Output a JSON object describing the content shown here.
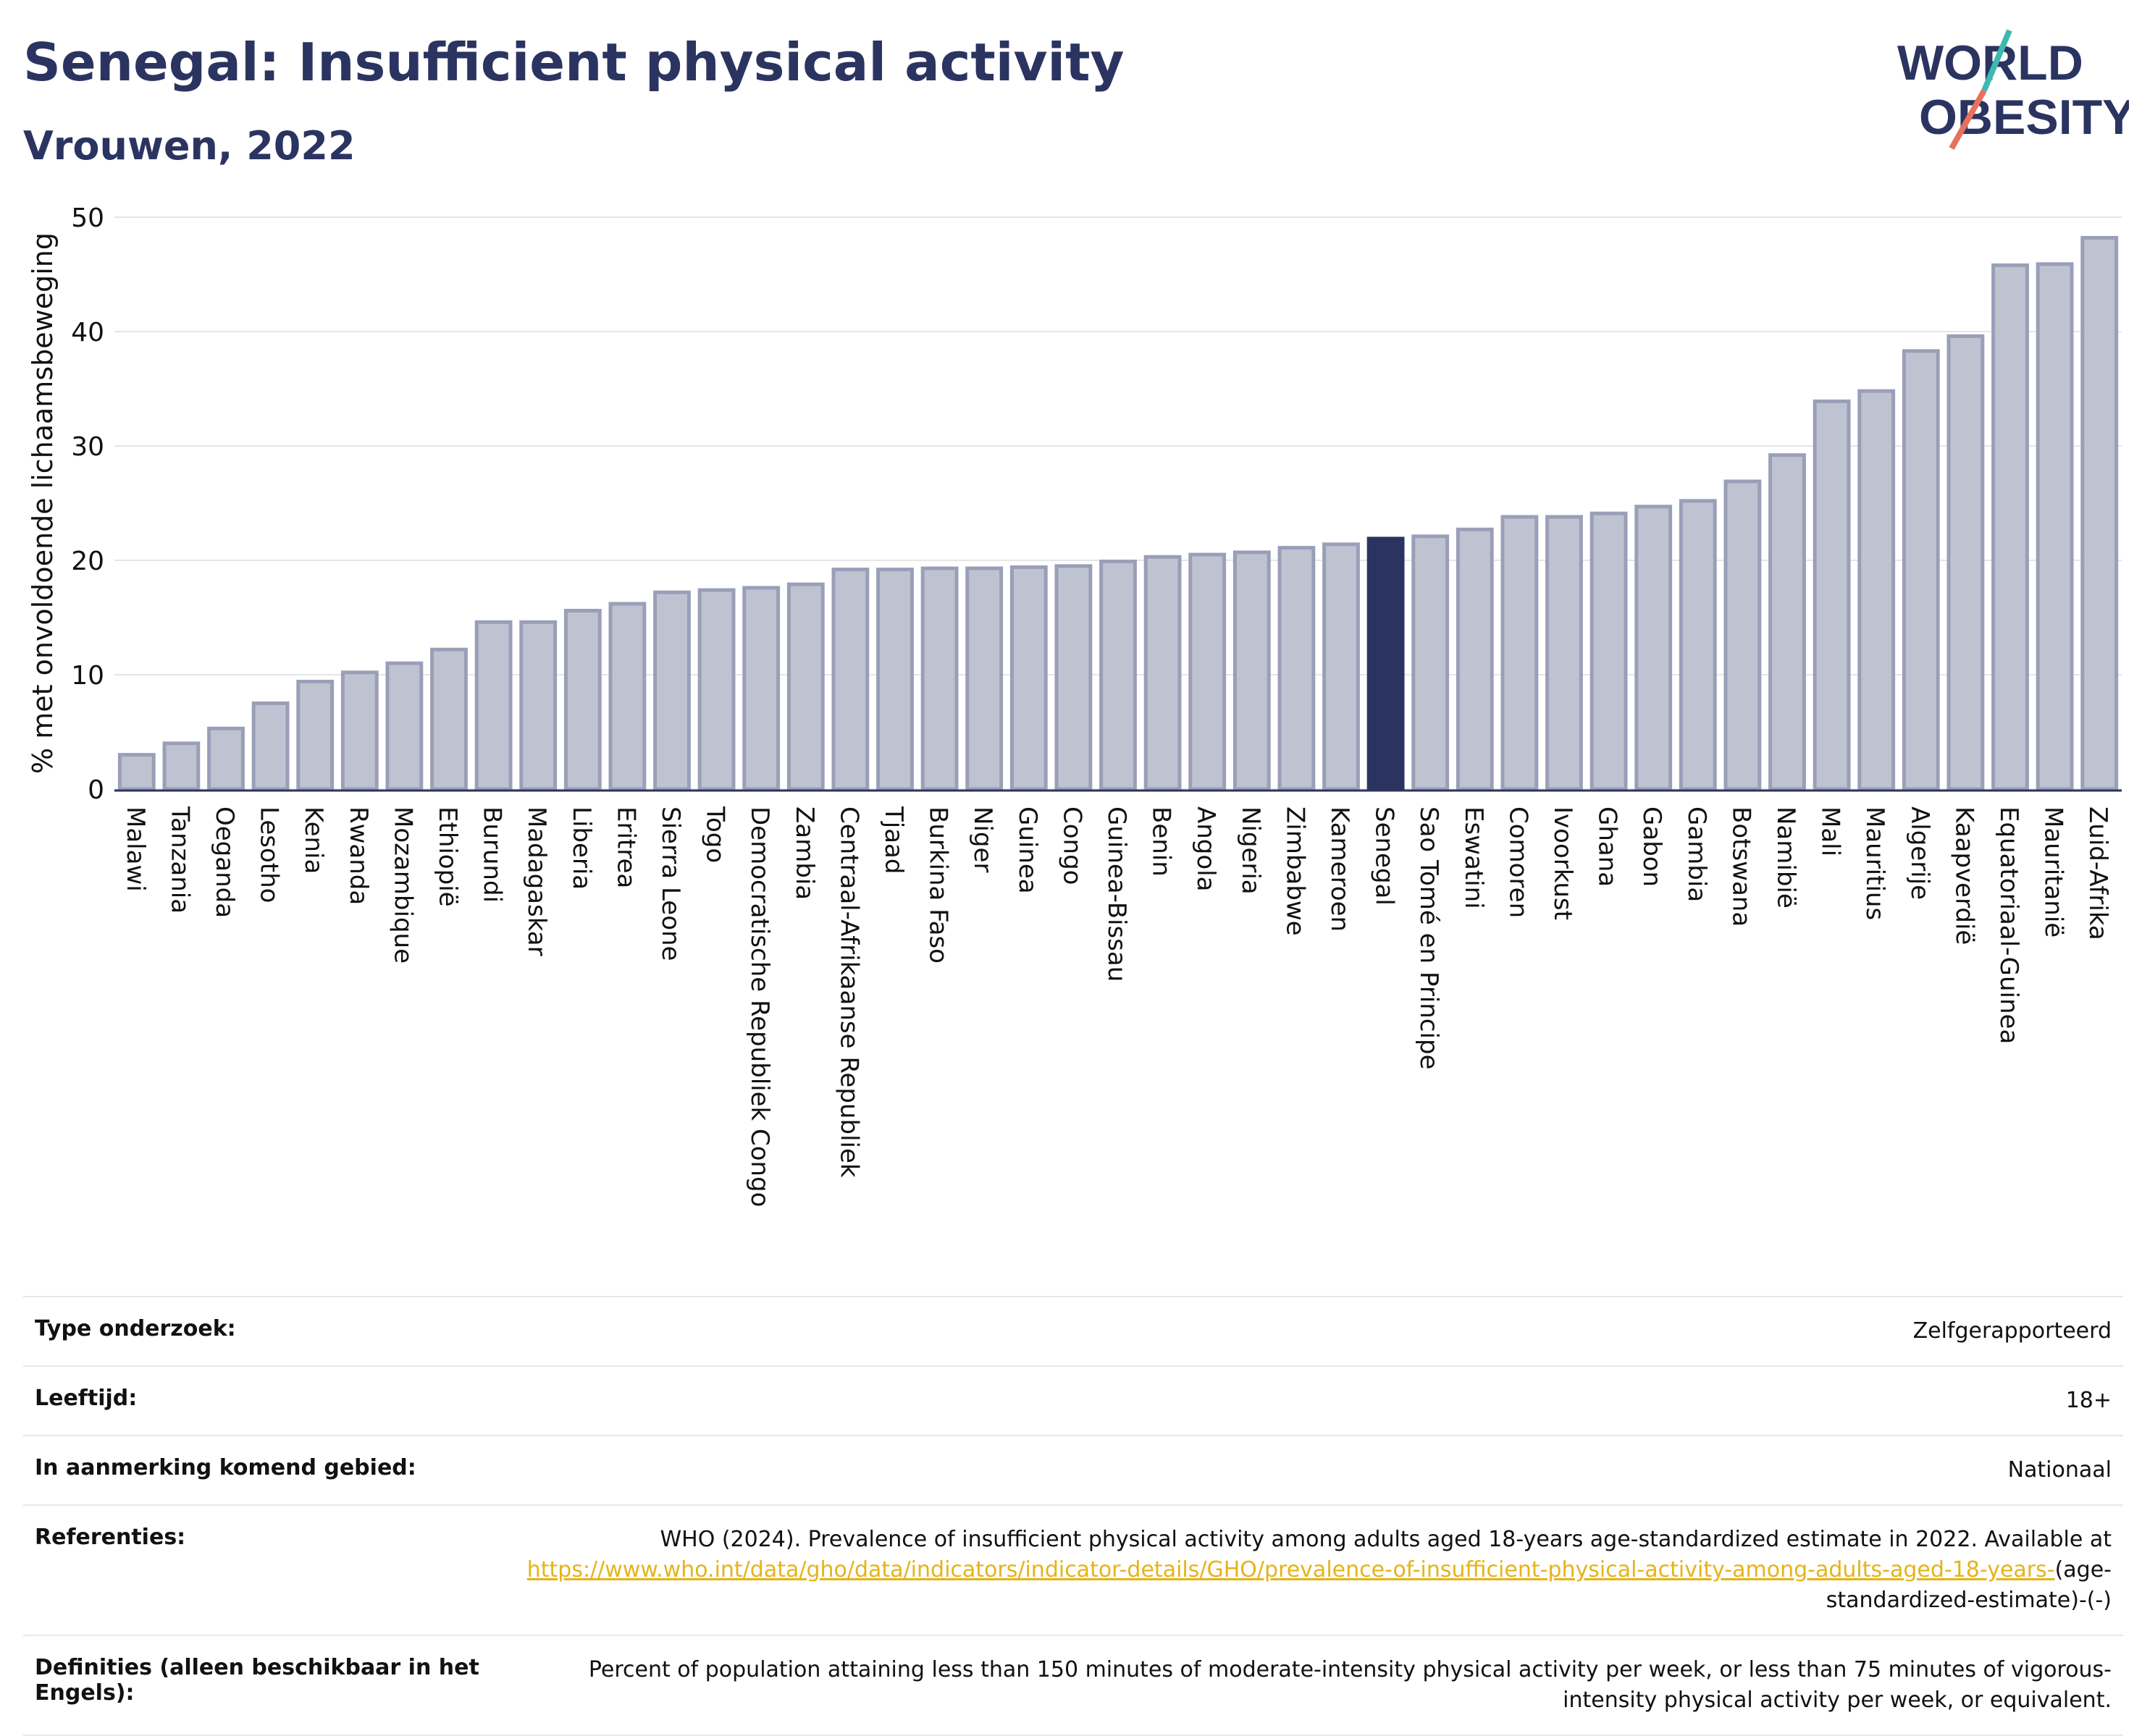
{
  "header": {
    "title": "Senegal: Insufficient physical activity",
    "subtitle": "Vrouwen, 2022",
    "logo_line1": "WORLD",
    "logo_line2": "OBESITY"
  },
  "colors": {
    "bar": "#bfc3d1",
    "bar_stroke": "#9a9fb8",
    "highlight": "#2b3460",
    "text": "#2b3460",
    "grid": "#e6e6e6",
    "link": "#e6b318"
  },
  "chart_data": {
    "type": "bar",
    "ylabel": "% met onvoldoende lichaamsbeweging",
    "ylim": [
      0,
      50
    ],
    "yticks": [
      0,
      10,
      20,
      30,
      40,
      50
    ],
    "grid": true,
    "highlight": "Senegal",
    "categories": [
      "Malawi",
      "Tanzania",
      "Oeganda",
      "Lesotho",
      "Kenia",
      "Rwanda",
      "Mozambique",
      "Ethiopië",
      "Burundi",
      "Madagaskar",
      "Liberia",
      "Eritrea",
      "Sierra Leone",
      "Togo",
      "Democratische Republiek Congo",
      "Zambia",
      "Centraal-Afrikaanse Republiek",
      "Tjaad",
      "Burkina Faso",
      "Niger",
      "Guinea",
      "Congo",
      "Guinea-Bissau",
      "Benin",
      "Angola",
      "Nigeria",
      "Zimbabwe",
      "Kameroen",
      "Senegal",
      "Sao Tomé en Principe",
      "Eswatini",
      "Comoren",
      "Ivoorkust",
      "Ghana",
      "Gabon",
      "Gambia",
      "Botswana",
      "Namibië",
      "Mali",
      "Mauritius",
      "Algerije",
      "Kaapverdië",
      "Equatoriaal-Guinea",
      "Mauritanië",
      "Zuid-Afrika"
    ],
    "values": [
      3.0,
      4.0,
      5.3,
      7.5,
      9.4,
      10.2,
      11.0,
      12.2,
      14.6,
      14.6,
      15.6,
      16.2,
      17.2,
      17.4,
      17.6,
      17.9,
      19.2,
      19.2,
      19.3,
      19.3,
      19.4,
      19.5,
      19.9,
      20.3,
      20.5,
      20.7,
      21.1,
      21.4,
      21.9,
      22.1,
      22.7,
      23.8,
      23.8,
      24.1,
      24.7,
      25.2,
      26.9,
      29.2,
      33.9,
      34.8,
      38.3,
      39.6,
      45.8,
      45.9,
      48.2
    ]
  },
  "meta": {
    "rows": [
      {
        "key": "Type onderzoek:",
        "value": "Zelfgerapporteerd"
      },
      {
        "key": "Leeftijd:",
        "value": "18+"
      },
      {
        "key": "In aanmerking komend gebied:",
        "value": "Nationaal"
      }
    ],
    "references_key": "Referenties:",
    "references_text": "WHO (2024). Prevalence of insufficient physical activity among adults aged 18-years age-standardized estimate in 2022. Available at",
    "references_link": "https://www.who.int/data/gho/data/indicators/indicator-details/GHO/prevalence-of-insufficient-physical-activity-among-adults-aged-18-years-",
    "references_tail": "(age-standardized-estimate)-(-)",
    "definitions_key": "Definities (alleen beschikbaar in het Engels):",
    "definitions_text": "Percent of population attaining less than 150 minutes of moderate-intensity physical activity per week, or less than 75 minutes of vigorous-intensity physical activity per week, or equivalent."
  }
}
